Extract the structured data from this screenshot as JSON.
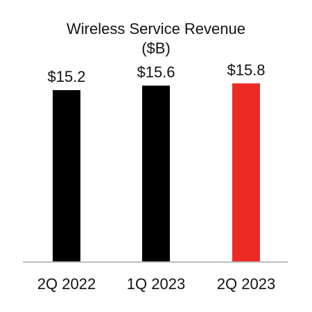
{
  "chart_data": {
    "type": "bar",
    "title": "Wireless Service Revenue",
    "subtitle": "($B)",
    "categories": [
      "2Q 2022",
      "1Q 2023",
      "2Q 2023"
    ],
    "values": [
      15.2,
      15.6,
      15.8
    ],
    "value_labels": [
      "$15.2",
      "$15.6",
      "$15.8"
    ],
    "bar_colors": [
      "#000000",
      "#000000",
      "#ee2a24"
    ],
    "axis_color": "#bdbdbd",
    "ylim": [
      0,
      18
    ],
    "grid": false,
    "legend": "none"
  }
}
